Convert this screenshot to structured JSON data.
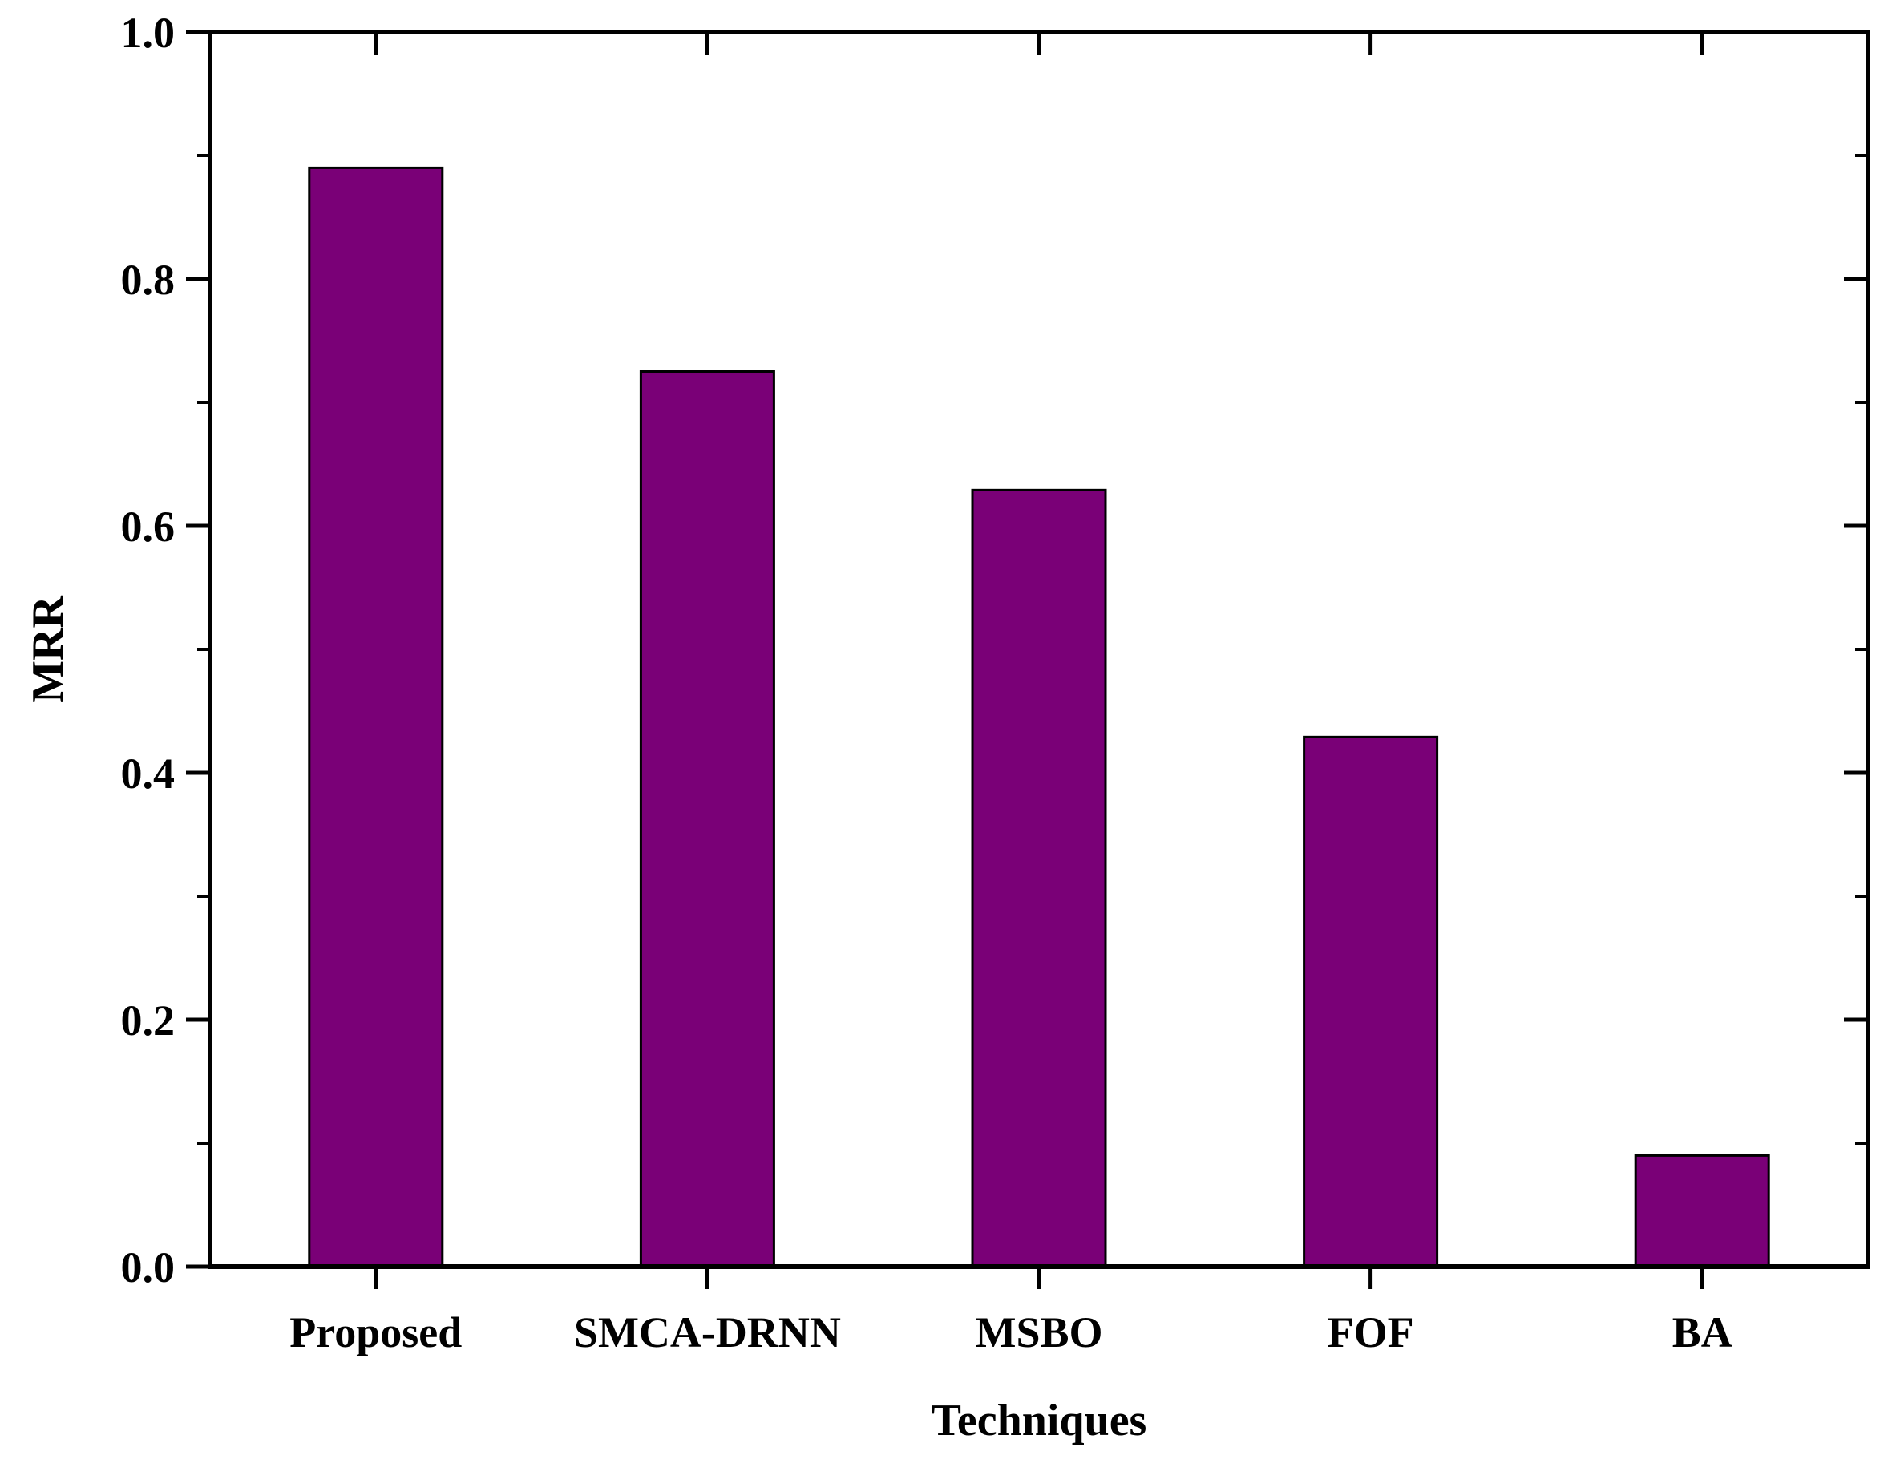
{
  "chart_data": {
    "type": "bar",
    "title": "",
    "xlabel": "Techniques",
    "ylabel": "MRR",
    "categories": [
      "Proposed",
      "SMCA-DRNN",
      "MSBO",
      "FOF",
      "BA"
    ],
    "values": [
      0.89,
      0.725,
      0.629,
      0.429,
      0.09
    ],
    "ylim": [
      0.0,
      1.0
    ],
    "yticks": [
      "0.0",
      "0.2",
      "0.4",
      "0.6",
      "0.8",
      "1.0"
    ],
    "bar_color": "#7a0077",
    "grid": false,
    "legend": "none"
  }
}
